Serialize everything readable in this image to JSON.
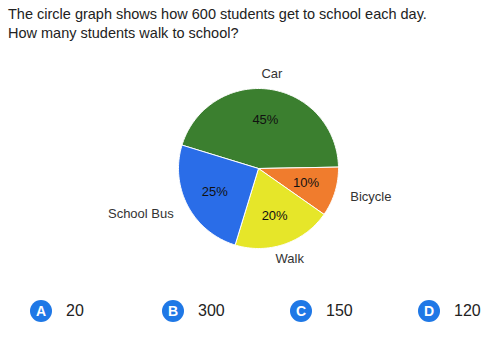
{
  "question": [
    "The circle graph shows how 600 students get to school each day.",
    "How many students walk to school?"
  ],
  "chart_data": {
    "type": "pie",
    "categories": [
      "Car",
      "Bicycle",
      "Walk",
      "School Bus"
    ],
    "values": [
      45,
      10,
      20,
      25
    ],
    "value_labels": [
      "45%",
      "10%",
      "20%",
      "25%"
    ],
    "colors": [
      "#3b7f2f",
      "#f07c2d",
      "#e6e629",
      "#2a6de8"
    ],
    "data_labels": true,
    "tick_labels": false
  },
  "choices": [
    {
      "letter": "A",
      "text": "20"
    },
    {
      "letter": "B",
      "text": "300"
    },
    {
      "letter": "C",
      "text": "150"
    },
    {
      "letter": "D",
      "text": "120"
    }
  ]
}
